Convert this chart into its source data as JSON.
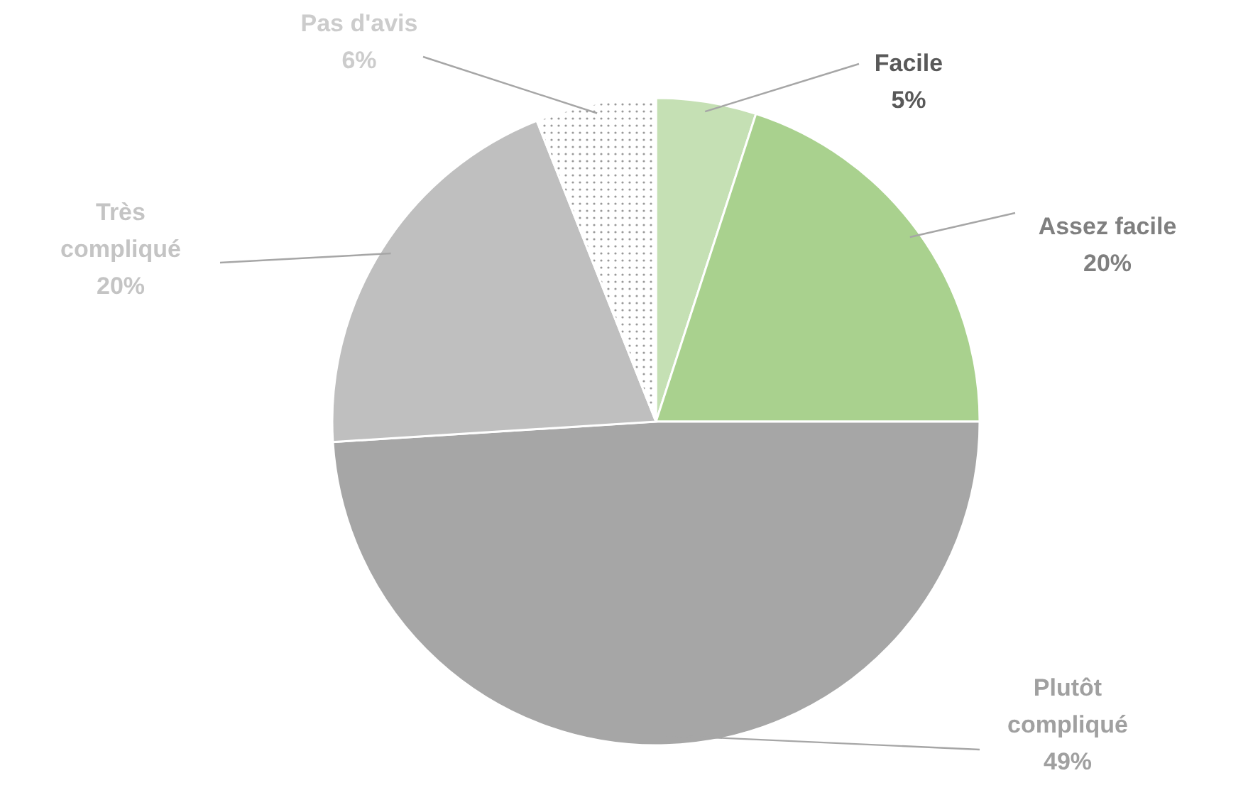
{
  "chart_data": {
    "type": "pie",
    "categories": [
      "Facile",
      "Assez facile",
      "Plutôt compliqué",
      "Très compliqué",
      "Pas d'avis"
    ],
    "values": [
      5,
      20,
      49,
      20,
      6
    ],
    "colors": [
      "#c5e0b4",
      "#a9d18e",
      "#a6a6a6",
      "#bfbfbf",
      "#ffffff"
    ],
    "value_labels": [
      "5%",
      "20%",
      "49%",
      "20%",
      "6%"
    ]
  }
}
